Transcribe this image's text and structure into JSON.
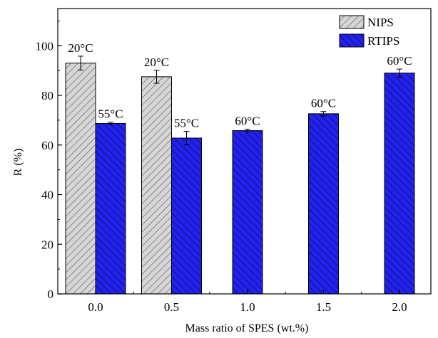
{
  "chart_data": {
    "type": "bar",
    "title": "",
    "xlabel": "Mass ratio of SPES (wt.%)",
    "ylabel": "R (%)",
    "ylim": [
      0,
      115
    ],
    "yticks": [
      0,
      20,
      40,
      60,
      80,
      100
    ],
    "categories": [
      "0.0",
      "0.5",
      "1.0",
      "1.5",
      "2.0"
    ],
    "grid": false,
    "legend_position": "top-right",
    "series": [
      {
        "name": "NIPS",
        "color": "#d4d4d4",
        "hatch": "diagonal",
        "values": [
          93,
          87.5,
          null,
          null,
          null
        ],
        "errors": [
          2.8,
          2.6,
          null,
          null,
          null
        ],
        "labels": [
          "20°C",
          "20°C",
          null,
          null,
          null
        ]
      },
      {
        "name": "RTIPS",
        "color": "#1f1fe6",
        "hatch": "diagonal",
        "values": [
          68.7,
          62.8,
          65.8,
          72.6,
          89
        ],
        "errors": [
          0.5,
          2.7,
          0.6,
          0.9,
          1.6
        ],
        "labels": [
          "55°C",
          "55°C",
          "60°C",
          "60°C",
          "60°C"
        ]
      }
    ]
  }
}
